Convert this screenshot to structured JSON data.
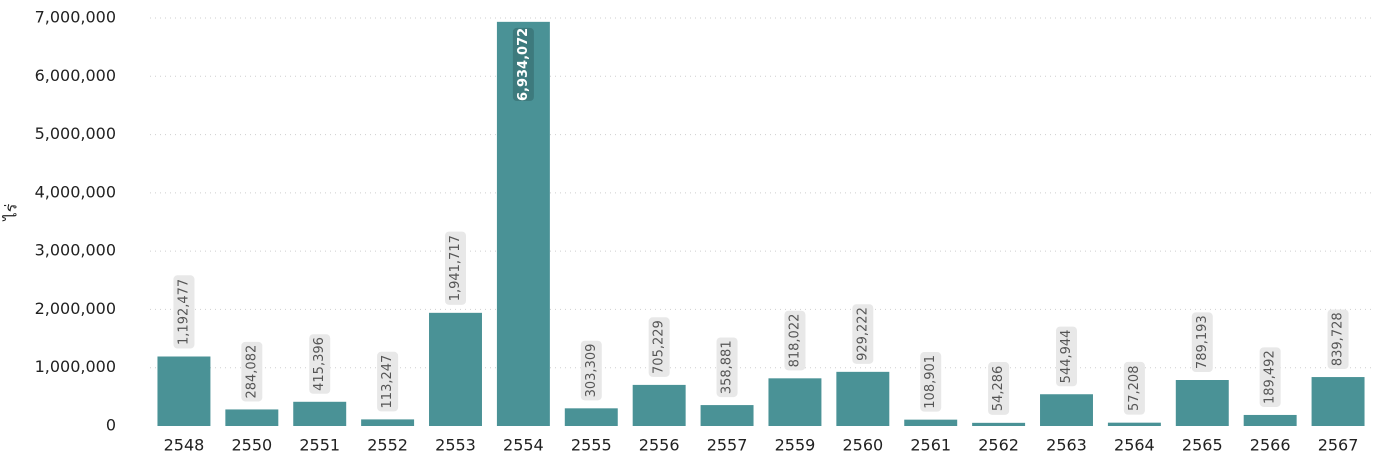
{
  "chart_data": {
    "type": "bar",
    "title": "",
    "xlabel": "",
    "ylabel": "ไร่",
    "categories": [
      "2548",
      "2550",
      "2551",
      "2552",
      "2553",
      "2554",
      "2555",
      "2556",
      "2557",
      "2559",
      "2560",
      "2561",
      "2562",
      "2563",
      "2564",
      "2565",
      "2566",
      "2567"
    ],
    "values": [
      1192477,
      284082,
      415396,
      113247,
      1941717,
      6934072,
      303309,
      705229,
      358881,
      818022,
      929222,
      108901,
      54286,
      544944,
      57208,
      789193,
      189492,
      839728
    ],
    "value_labels": [
      "1,192,477",
      "284,082",
      "415,396",
      "113,247",
      "1,941,717",
      "6,934,072",
      "303,309",
      "705,229",
      "358,881",
      "818,022",
      "929,222",
      "108,901",
      "54,286",
      "544,944",
      "57,208",
      "789,193",
      "189,492",
      "839,728"
    ],
    "yticks": [
      0,
      1000000,
      2000000,
      3000000,
      4000000,
      5000000,
      6000000,
      7000000
    ],
    "ytick_labels": [
      "0",
      "1,000,000",
      "2,000,000",
      "3,000,000",
      "4,000,000",
      "5,000,000",
      "6,000,000",
      "7,000,000"
    ],
    "ylim": [
      0,
      7000000
    ],
    "grid": true,
    "legend": "none",
    "colors": {
      "bar": "#4a9296",
      "label_bg": "#e8e8e8",
      "label_bg_inside": "#3d7a7d",
      "grid": "#cfcfcf",
      "text": "#222222"
    }
  }
}
